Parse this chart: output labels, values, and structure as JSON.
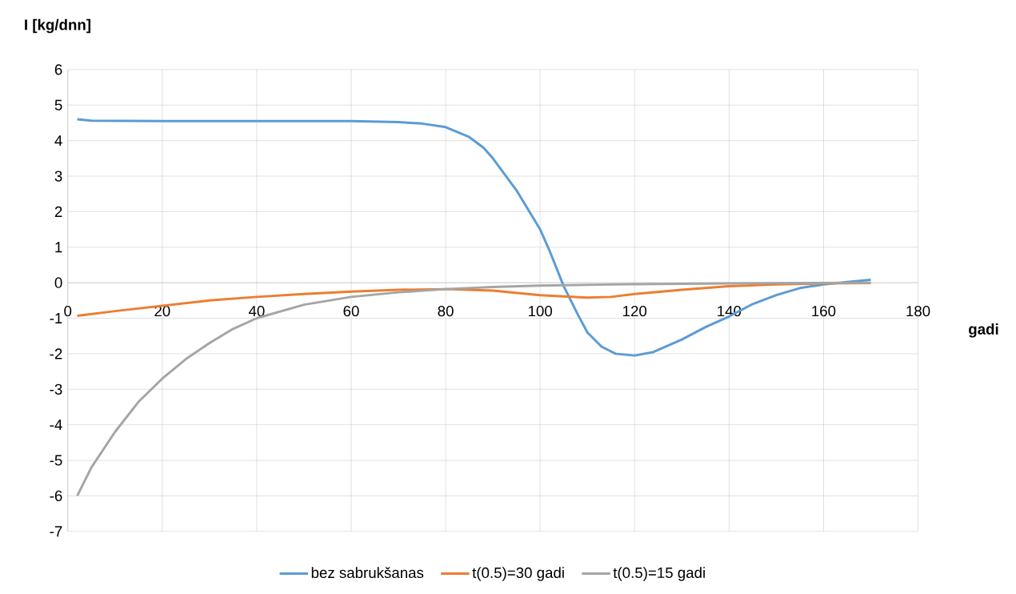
{
  "chart_data": {
    "type": "line",
    "xlabel": "gadi",
    "ylabel": "I [kg/dnn]",
    "xlim": [
      0,
      180
    ],
    "xticks": [
      0,
      20,
      40,
      60,
      80,
      100,
      120,
      140,
      160,
      180
    ],
    "ylim": [
      -7,
      6
    ],
    "yticks": [
      -7,
      -6,
      -5,
      -4,
      -3,
      -2,
      -1,
      0,
      1,
      2,
      3,
      4,
      5,
      6
    ],
    "grid": true,
    "legend": "bottom",
    "line_style": "solid",
    "marker": "none",
    "series": [
      {
        "name": "bez sabrukšanas",
        "color": "#5b9bd5",
        "x": [
          2,
          5,
          20,
          40,
          60,
          70,
          75,
          80,
          85,
          88,
          90,
          95,
          100,
          102,
          105,
          108,
          110,
          113,
          116,
          120,
          124,
          130,
          135,
          140,
          145,
          150,
          155,
          160,
          165,
          170
        ],
        "values": [
          4.6,
          4.56,
          4.55,
          4.55,
          4.55,
          4.52,
          4.48,
          4.38,
          4.1,
          3.8,
          3.5,
          2.6,
          1.5,
          0.9,
          -0.1,
          -0.9,
          -1.4,
          -1.8,
          -2.0,
          -2.05,
          -1.95,
          -1.6,
          -1.25,
          -0.95,
          -0.6,
          -0.35,
          -0.15,
          -0.05,
          0.02,
          0.08
        ]
      },
      {
        "name": "t(0.5)=30 gadi",
        "color": "#ed7d31",
        "x": [
          2,
          10,
          20,
          30,
          40,
          50,
          60,
          70,
          80,
          90,
          100,
          110,
          115,
          120,
          130,
          140,
          150,
          160,
          170
        ],
        "values": [
          -0.93,
          -0.8,
          -0.65,
          -0.5,
          -0.4,
          -0.32,
          -0.25,
          -0.2,
          -0.18,
          -0.22,
          -0.35,
          -0.42,
          -0.4,
          -0.32,
          -0.2,
          -0.1,
          -0.05,
          -0.02,
          -0.01
        ]
      },
      {
        "name": "t(0.5)=15 gadi",
        "color": "#a5a5a5",
        "x": [
          2,
          5,
          10,
          15,
          20,
          25,
          30,
          35,
          40,
          50,
          60,
          70,
          80,
          90,
          100,
          120,
          140,
          170
        ],
        "values": [
          -6.0,
          -5.2,
          -4.2,
          -3.35,
          -2.7,
          -2.15,
          -1.7,
          -1.3,
          -1.0,
          -0.62,
          -0.4,
          -0.27,
          -0.18,
          -0.12,
          -0.08,
          -0.04,
          -0.02,
          0
        ]
      }
    ]
  }
}
